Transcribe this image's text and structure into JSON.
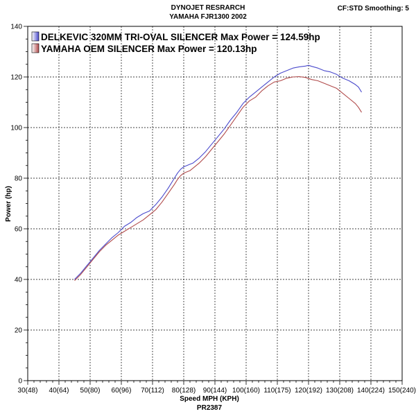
{
  "header": {
    "title_line1": "DYNOJET RESRARCH",
    "title_line2": "YAMAHA FJR1300 2002",
    "settings": "CF:STD Smoothing: 5"
  },
  "chart_data": {
    "type": "line",
    "xlabel": "Speed MPH (KPH)",
    "xlabel_sub": "PR2387",
    "ylabel": "Power (hp)",
    "xlim": [
      30,
      150
    ],
    "ylim": [
      0,
      140
    ],
    "x_ticks": [
      30,
      40,
      50,
      60,
      70,
      80,
      90,
      100,
      110,
      120,
      130,
      140,
      150
    ],
    "x_tick_labels": [
      "30(48)",
      "40(64)",
      "50(80)",
      "60(96)",
      "70(112)",
      "80(128)",
      "90(144)",
      "100(160)",
      "110(175)",
      "120(192)",
      "130(208)",
      "140(224)",
      "150(240)"
    ],
    "y_ticks": [
      0,
      20,
      40,
      60,
      80,
      100,
      120,
      140
    ],
    "grid": true,
    "legend_position": "top-left",
    "series": [
      {
        "name": "DELKEVIC 320MM TRI-OVAL SILENCER",
        "legend_label": "DELKEVIC 320MM TRI-OVAL SILENCER  Max Power = 124.59hp",
        "color": "#4a4acc",
        "x": [
          45,
          47,
          49,
          51,
          53,
          55,
          57,
          59,
          61,
          63,
          65,
          67,
          69,
          71,
          73,
          75,
          77,
          78,
          79,
          80,
          81,
          82,
          83,
          85,
          87,
          89,
          91,
          93,
          95,
          97,
          99,
          101,
          103,
          105,
          107,
          109,
          111,
          113,
          115,
          117,
          119,
          120,
          121,
          123,
          125,
          127,
          129,
          131,
          133,
          135,
          136,
          137
        ],
        "y": [
          40,
          42.5,
          45.5,
          48.5,
          51.5,
          54,
          56.5,
          58.5,
          61,
          62.5,
          64.5,
          66,
          67,
          69.5,
          72.5,
          76,
          80,
          82,
          83.5,
          84.5,
          85,
          85.5,
          86,
          88,
          90.5,
          93.5,
          96.5,
          99.5,
          103,
          106,
          109.5,
          112,
          114,
          116,
          118,
          120,
          121.5,
          122.5,
          123.5,
          124,
          124.3,
          124.59,
          124.2,
          123.5,
          122.5,
          122,
          121,
          119.5,
          118.5,
          117,
          116,
          114
        ]
      },
      {
        "name": "YAMAHA OEM SILENCER",
        "legend_label": "YAMAHA OEM SILENCER Max Power = 120.13hp",
        "color": "#b04a4a",
        "x": [
          45,
          47,
          49,
          51,
          53,
          55,
          57,
          59,
          61,
          63,
          65,
          67,
          69,
          71,
          73,
          75,
          77,
          78,
          79,
          80,
          81,
          82,
          83,
          85,
          87,
          89,
          91,
          93,
          95,
          97,
          99,
          101,
          103,
          105,
          107,
          109,
          111,
          113,
          115,
          117,
          119,
          121,
          123,
          125,
          127,
          129,
          131,
          133,
          135,
          136,
          137
        ],
        "y": [
          39.5,
          42,
          45,
          48,
          51,
          53.5,
          55.5,
          57.5,
          59,
          60.5,
          62,
          63.5,
          65.5,
          67.5,
          70.5,
          74,
          77.5,
          79.5,
          81,
          82,
          82.5,
          83,
          84,
          86,
          88.5,
          91.5,
          94.5,
          97.5,
          101,
          104.5,
          108,
          110.5,
          112,
          114.5,
          116.5,
          118,
          118.5,
          119.5,
          120,
          120.13,
          119.8,
          119,
          118.5,
          117.5,
          116.5,
          115.5,
          113.5,
          111.5,
          109.5,
          108,
          106
        ]
      }
    ]
  }
}
